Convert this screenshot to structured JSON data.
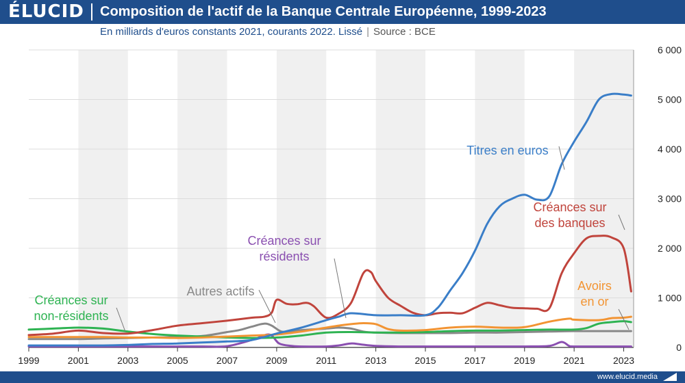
{
  "header": {
    "logo": "ÉLUCID",
    "title": "Composition de l'actif de la Banque Centrale Européenne, 1999-2023"
  },
  "subtitle": {
    "units": "En milliards d'euros constants 2021, courants 2022. Lissé",
    "separator": "|",
    "source": "Source : BCE"
  },
  "footer": {
    "url": "www.elucid.media"
  },
  "chart_data": {
    "type": "line",
    "x_ticks": [
      "1999",
      "2001",
      "2003",
      "2005",
      "2007",
      "2009",
      "2011",
      "2013",
      "2015",
      "2017",
      "2019",
      "2021",
      "2023"
    ],
    "y_ticks": [
      "0",
      "1 000",
      "2 000",
      "3 000",
      "4 000",
      "5 000",
      "6 000"
    ],
    "xlim": [
      1999,
      2023.4
    ],
    "ylim": [
      0,
      6000
    ],
    "grid": true,
    "y_axis_side": "right",
    "series": [
      {
        "name": "Créances sur résidents",
        "color": "#8a4fb0",
        "points": [
          [
            1999,
            20
          ],
          [
            2000,
            20
          ],
          [
            2001,
            20
          ],
          [
            2002,
            20
          ],
          [
            2003,
            20
          ],
          [
            2004,
            20
          ],
          [
            2005,
            20
          ],
          [
            2006,
            20
          ],
          [
            2007,
            25
          ],
          [
            2008,
            150
          ],
          [
            2008.7,
            260
          ],
          [
            2009.1,
            80
          ],
          [
            2009.6,
            30
          ],
          [
            2010,
            20
          ],
          [
            2011,
            20
          ],
          [
            2011.5,
            40
          ],
          [
            2012,
            80
          ],
          [
            2012.4,
            60
          ],
          [
            2013,
            30
          ],
          [
            2014,
            20
          ],
          [
            2015,
            20
          ],
          [
            2016,
            20
          ],
          [
            2017,
            20
          ],
          [
            2018,
            20
          ],
          [
            2019,
            20
          ],
          [
            2020,
            30
          ],
          [
            2020.5,
            110
          ],
          [
            2020.8,
            30
          ],
          [
            2021,
            20
          ],
          [
            2022,
            20
          ],
          [
            2023,
            20
          ],
          [
            2023.3,
            20
          ]
        ]
      },
      {
        "name": "Autres actifs",
        "color": "#888888",
        "points": [
          [
            1999,
            170
          ],
          [
            2000,
            170
          ],
          [
            2001,
            170
          ],
          [
            2002,
            180
          ],
          [
            2003,
            190
          ],
          [
            2004,
            200
          ],
          [
            2005,
            210
          ],
          [
            2006,
            230
          ],
          [
            2007,
            310
          ],
          [
            2007.5,
            350
          ],
          [
            2008,
            420
          ],
          [
            2008.5,
            480
          ],
          [
            2008.8,
            440
          ],
          [
            2009.2,
            320
          ],
          [
            2009.7,
            330
          ],
          [
            2010,
            350
          ],
          [
            2011,
            380
          ],
          [
            2011.5,
            400
          ],
          [
            2012,
            380
          ],
          [
            2012.5,
            320
          ],
          [
            2013,
            300
          ],
          [
            2014,
            290
          ],
          [
            2015,
            290
          ],
          [
            2016,
            290
          ],
          [
            2017,
            300
          ],
          [
            2018,
            300
          ],
          [
            2019,
            310
          ],
          [
            2020,
            320
          ],
          [
            2021,
            330
          ],
          [
            2022,
            330
          ],
          [
            2023,
            330
          ],
          [
            2023.3,
            330
          ]
        ]
      },
      {
        "name": "Créances sur non-résidents",
        "color": "#2eb352",
        "points": [
          [
            1999,
            360
          ],
          [
            2000,
            380
          ],
          [
            2001,
            400
          ],
          [
            2002,
            380
          ],
          [
            2003,
            320
          ],
          [
            2004,
            270
          ],
          [
            2005,
            240
          ],
          [
            2006,
            220
          ],
          [
            2007,
            200
          ],
          [
            2008,
            190
          ],
          [
            2009,
            200
          ],
          [
            2010,
            240
          ],
          [
            2011,
            300
          ],
          [
            2012,
            310
          ],
          [
            2013,
            300
          ],
          [
            2014,
            300
          ],
          [
            2015,
            310
          ],
          [
            2016,
            330
          ],
          [
            2017,
            340
          ],
          [
            2018,
            340
          ],
          [
            2019,
            350
          ],
          [
            2020,
            360
          ],
          [
            2021,
            360
          ],
          [
            2021.5,
            390
          ],
          [
            2022,
            480
          ],
          [
            2022.5,
            510
          ],
          [
            2023,
            530
          ],
          [
            2023.3,
            510
          ]
        ]
      },
      {
        "name": "Avoirs en or",
        "color": "#f29433",
        "points": [
          [
            1999,
            210
          ],
          [
            2000,
            210
          ],
          [
            2001,
            210
          ],
          [
            2002,
            210
          ],
          [
            2003,
            200
          ],
          [
            2004,
            200
          ],
          [
            2005,
            190
          ],
          [
            2006,
            200
          ],
          [
            2007,
            220
          ],
          [
            2008,
            240
          ],
          [
            2009,
            260
          ],
          [
            2010,
            320
          ],
          [
            2011,
            400
          ],
          [
            2011.5,
            440
          ],
          [
            2012,
            470
          ],
          [
            2012.5,
            490
          ],
          [
            2013,
            470
          ],
          [
            2013.5,
            370
          ],
          [
            2014,
            340
          ],
          [
            2015,
            350
          ],
          [
            2016,
            400
          ],
          [
            2017,
            420
          ],
          [
            2018,
            400
          ],
          [
            2019,
            410
          ],
          [
            2020,
            520
          ],
          [
            2020.8,
            580
          ],
          [
            2021,
            560
          ],
          [
            2022,
            550
          ],
          [
            2022.5,
            590
          ],
          [
            2023,
            600
          ],
          [
            2023.3,
            620
          ]
        ]
      },
      {
        "name": "Créances sur des banques",
        "color": "#c0443c",
        "points": [
          [
            1999,
            250
          ],
          [
            2000,
            280
          ],
          [
            2001,
            340
          ],
          [
            2002,
            290
          ],
          [
            2003,
            280
          ],
          [
            2004,
            350
          ],
          [
            2005,
            440
          ],
          [
            2006,
            490
          ],
          [
            2007,
            540
          ],
          [
            2008,
            600
          ],
          [
            2008.5,
            620
          ],
          [
            2008.8,
            700
          ],
          [
            2009,
            960
          ],
          [
            2009.4,
            880
          ],
          [
            2009.8,
            870
          ],
          [
            2010.2,
            900
          ],
          [
            2010.5,
            830
          ],
          [
            2011,
            600
          ],
          [
            2011.5,
            680
          ],
          [
            2012,
            900
          ],
          [
            2012.5,
            1500
          ],
          [
            2012.8,
            1520
          ],
          [
            2013,
            1340
          ],
          [
            2013.5,
            1000
          ],
          [
            2014,
            840
          ],
          [
            2014.5,
            700
          ],
          [
            2015,
            650
          ],
          [
            2015.5,
            690
          ],
          [
            2016,
            700
          ],
          [
            2016.5,
            690
          ],
          [
            2017,
            800
          ],
          [
            2017.5,
            900
          ],
          [
            2018,
            850
          ],
          [
            2018.5,
            800
          ],
          [
            2019,
            790
          ],
          [
            2019.5,
            780
          ],
          [
            2020,
            790
          ],
          [
            2020.5,
            1500
          ],
          [
            2021,
            1900
          ],
          [
            2021.5,
            2200
          ],
          [
            2022,
            2250
          ],
          [
            2022.5,
            2220
          ],
          [
            2023,
            2000
          ],
          [
            2023.3,
            1130
          ]
        ]
      },
      {
        "name": "Titres en euros",
        "color": "#3a7ec8",
        "points": [
          [
            1999,
            40
          ],
          [
            2000,
            40
          ],
          [
            2001,
            40
          ],
          [
            2002,
            40
          ],
          [
            2003,
            50
          ],
          [
            2004,
            70
          ],
          [
            2005,
            80
          ],
          [
            2006,
            100
          ],
          [
            2007,
            120
          ],
          [
            2008,
            150
          ],
          [
            2009,
            280
          ],
          [
            2010,
            400
          ],
          [
            2011,
            550
          ],
          [
            2011.5,
            620
          ],
          [
            2012,
            690
          ],
          [
            2013,
            650
          ],
          [
            2014,
            650
          ],
          [
            2015,
            650
          ],
          [
            2015.5,
            800
          ],
          [
            2016,
            1150
          ],
          [
            2016.5,
            1500
          ],
          [
            2017,
            1950
          ],
          [
            2017.5,
            2500
          ],
          [
            2018,
            2850
          ],
          [
            2018.5,
            3000
          ],
          [
            2019,
            3080
          ],
          [
            2019.5,
            2980
          ],
          [
            2020,
            3050
          ],
          [
            2020.5,
            3700
          ],
          [
            2021,
            4150
          ],
          [
            2021.5,
            4550
          ],
          [
            2022,
            5000
          ],
          [
            2022.5,
            5110
          ],
          [
            2023,
            5100
          ],
          [
            2023.3,
            5080
          ]
        ]
      }
    ],
    "labels": [
      {
        "text": [
          "Titres en euros"
        ],
        "color": "#3a7ec8"
      },
      {
        "text": [
          "Créances sur",
          "des banques"
        ],
        "color": "#c0443c"
      },
      {
        "text": [
          "Créances sur",
          "résidents"
        ],
        "color": "#8a4fb0"
      },
      {
        "text": [
          "Autres actifs"
        ],
        "color": "#888888"
      },
      {
        "text": [
          "Créances sur",
          "non-résidents"
        ],
        "color": "#2eb352"
      },
      {
        "text": [
          "Avoirs",
          "en or"
        ],
        "color": "#f29433"
      }
    ]
  }
}
